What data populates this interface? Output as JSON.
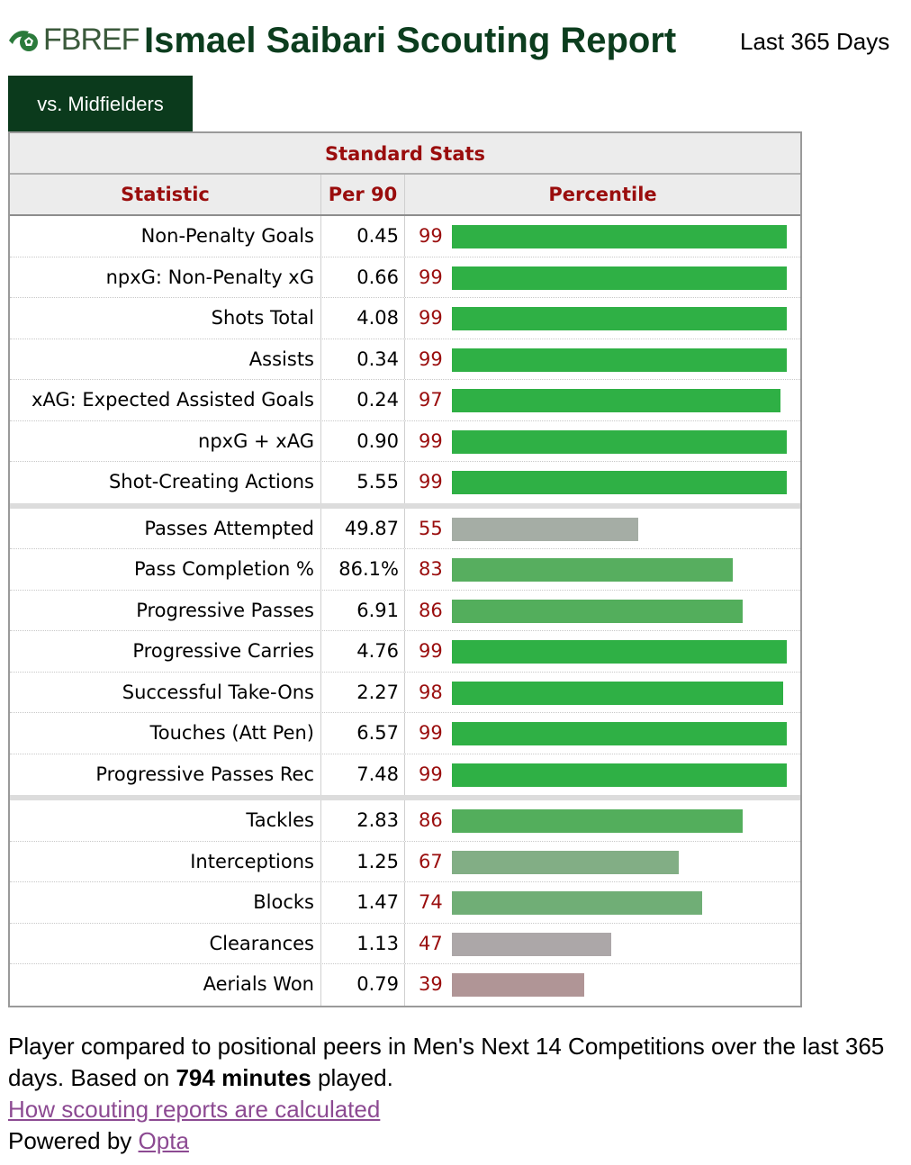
{
  "header": {
    "logo_text": "FBREF",
    "title": "Ismael Saibari Scouting Report",
    "period": "Last 365 Days"
  },
  "tab": {
    "label": "vs. Midfielders"
  },
  "table": {
    "caption": "Standard Stats",
    "columns": [
      "Statistic",
      "Per 90",
      "Percentile"
    ],
    "groups": [
      [
        {
          "stat": "Non-Penalty Goals",
          "per90": "0.45",
          "percentile": 99,
          "color": "#2fb045"
        },
        {
          "stat": "npxG: Non-Penalty xG",
          "per90": "0.66",
          "percentile": 99,
          "color": "#2fb045"
        },
        {
          "stat": "Shots Total",
          "per90": "4.08",
          "percentile": 99,
          "color": "#2fb045"
        },
        {
          "stat": "Assists",
          "per90": "0.34",
          "percentile": 99,
          "color": "#2fb045"
        },
        {
          "stat": "xAG: Expected Assisted Goals",
          "per90": "0.24",
          "percentile": 97,
          "color": "#2fb045"
        },
        {
          "stat": "npxG + xAG",
          "per90": "0.90",
          "percentile": 99,
          "color": "#2fb045"
        },
        {
          "stat": "Shot-Creating Actions",
          "per90": "5.55",
          "percentile": 99,
          "color": "#2fb045"
        }
      ],
      [
        {
          "stat": "Passes Attempted",
          "per90": "49.87",
          "percentile": 55,
          "color": "#a5ada5"
        },
        {
          "stat": "Pass Completion %",
          "per90": "86.1%",
          "percentile": 83,
          "color": "#57ae5f"
        },
        {
          "stat": "Progressive Passes",
          "per90": "6.91",
          "percentile": 86,
          "color": "#53ae5c"
        },
        {
          "stat": "Progressive Carries",
          "per90": "4.76",
          "percentile": 99,
          "color": "#2fb045"
        },
        {
          "stat": "Successful Take-Ons",
          "per90": "2.27",
          "percentile": 98,
          "color": "#2fb045"
        },
        {
          "stat": "Touches (Att Pen)",
          "per90": "6.57",
          "percentile": 99,
          "color": "#2fb045"
        },
        {
          "stat": "Progressive Passes Rec",
          "per90": "7.48",
          "percentile": 99,
          "color": "#2fb045"
        }
      ],
      [
        {
          "stat": "Tackles",
          "per90": "2.83",
          "percentile": 86,
          "color": "#53ae5c"
        },
        {
          "stat": "Interceptions",
          "per90": "1.25",
          "percentile": 67,
          "color": "#82ae85"
        },
        {
          "stat": "Blocks",
          "per90": "1.47",
          "percentile": 74,
          "color": "#70ae76"
        },
        {
          "stat": "Clearances",
          "per90": "1.13",
          "percentile": 47,
          "color": "#aca7a8"
        },
        {
          "stat": "Aerials Won",
          "per90": "0.79",
          "percentile": 39,
          "color": "#b09596"
        }
      ]
    ]
  },
  "footer": {
    "line1_text": "Player compared to positional peers in Men's Next 14 Competitions over the last 365 days. Based on ",
    "minutes": "794 minutes",
    "line1_tail": " played.",
    "link_label": "How scouting reports are calculated",
    "powered_prefix": "Powered by ",
    "powered_link": "Opta"
  }
}
